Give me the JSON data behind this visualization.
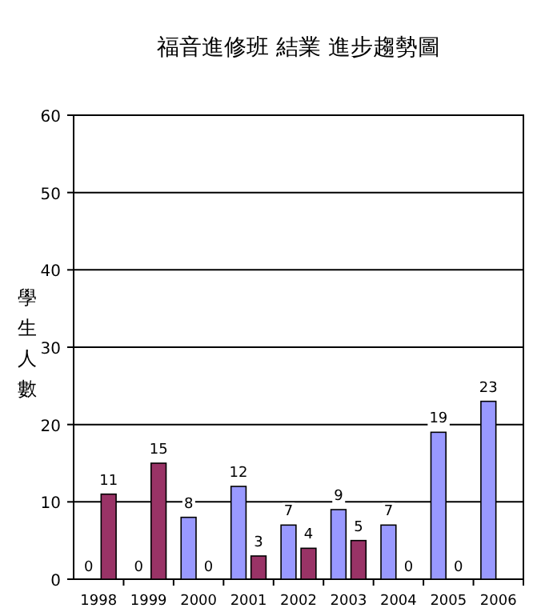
{
  "chart_data": {
    "type": "bar",
    "title": "福音進修班 結業 進步趨勢圖",
    "ylabel": "學生人數",
    "categories": [
      "1998",
      "1999",
      "2000",
      "2001",
      "2002",
      "2003",
      "2004",
      "2005",
      "2006"
    ],
    "series": [
      {
        "color": "#9999ff",
        "values": [
          0,
          0,
          8,
          12,
          7,
          9,
          7,
          19,
          23
        ]
      },
      {
        "color": "#993366",
        "values": [
          11,
          15,
          0,
          3,
          4,
          5,
          0,
          0,
          null
        ]
      }
    ],
    "ylim": [
      0,
      60
    ],
    "yticks": [
      0,
      10,
      20,
      30,
      40,
      50,
      60
    ],
    "grid": "y",
    "data_labels": true
  }
}
